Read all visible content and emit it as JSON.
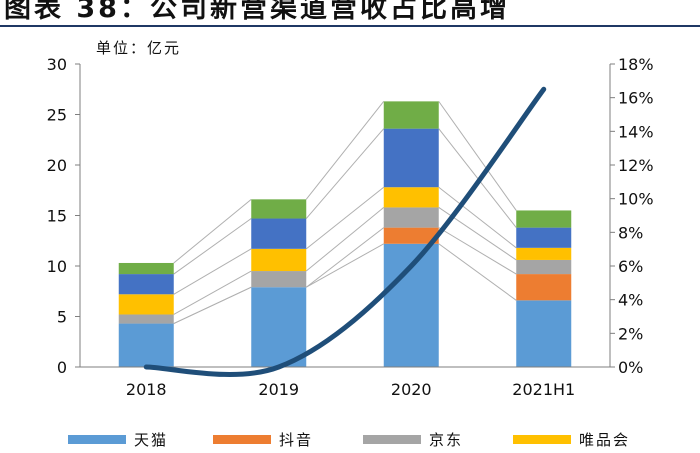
{
  "figure_title": "图表 38：公司新营渠道营收占比高增",
  "chart_data": {
    "type": "bar",
    "stacked": true,
    "unit_label": "单位：亿元",
    "categories": [
      "2018",
      "2019",
      "2020",
      "2021H1"
    ],
    "series": [
      {
        "name": "天猫",
        "color": "#5b9bd5",
        "values": [
          4.3,
          7.9,
          12.2,
          6.6
        ]
      },
      {
        "name": "抖音",
        "color": "#ed7d31",
        "values": [
          0,
          0,
          1.6,
          2.6
        ]
      },
      {
        "name": "京东",
        "color": "#a5a5a5",
        "values": [
          0.9,
          1.6,
          2.0,
          1.4
        ]
      },
      {
        "name": "唯品会",
        "color": "#ffc000",
        "values": [
          2.0,
          2.2,
          2.0,
          1.2
        ]
      },
      {
        "name": "",
        "color": "#4472c4",
        "values": [
          2.0,
          3.0,
          5.8,
          2.0
        ]
      },
      {
        "name": "",
        "color": "#70ad47",
        "values": [
          1.1,
          1.9,
          2.7,
          1.7
        ]
      }
    ],
    "line_series": {
      "color": "#1f4e79",
      "axis": "right",
      "values": [
        0,
        0,
        6.0,
        16.5
      ],
      "curve": "smooth"
    },
    "connector_color": "#b0b0b0",
    "y_left": {
      "min": 0,
      "max": 30,
      "ticks": [
        "0",
        "5",
        "10",
        "15",
        "20",
        "25",
        "30"
      ]
    },
    "y_right": {
      "min": 0,
      "max": 18,
      "ticks": [
        "0%",
        "2%",
        "4%",
        "6%",
        "8%",
        "10%",
        "12%",
        "14%",
        "16%",
        "18%"
      ]
    },
    "grid": false,
    "legend_position": "bottom"
  }
}
